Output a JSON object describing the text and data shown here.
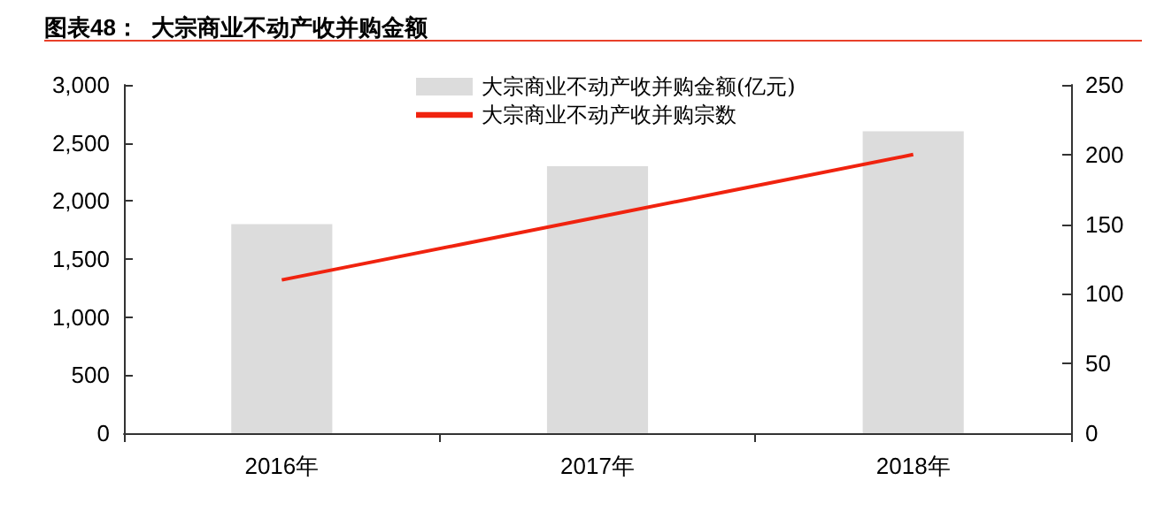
{
  "chart_data": {
    "type": "bar",
    "title": "图表48：  大宗商业不动产收并购金额",
    "categories": [
      "2016年",
      "2017年",
      "2018年"
    ],
    "series": [
      {
        "name": "大宗商业不动产收并购金额(亿元)",
        "color": "#dcdcdc",
        "values": [
          1800,
          2300,
          2600
        ]
      },
      {
        "name": "大宗商业不动产收并购宗数",
        "type": "line",
        "axis": "y2",
        "color": "#f0230f",
        "values": [
          110,
          155,
          200
        ]
      }
    ],
    "ylim": [
      0,
      3000
    ],
    "yticks": [
      0,
      500,
      {
        "value": 1000,
        "label": "1,000"
      },
      {
        "value": 1500,
        "label": "1,500"
      },
      {
        "value": 2000,
        "label": "2,000"
      },
      {
        "value": 2500,
        "label": "2,500"
      },
      {
        "value": 3000,
        "label": "3,000"
      }
    ],
    "y2lim": [
      0,
      250
    ],
    "y2ticks": [
      0,
      50,
      100,
      150,
      200,
      250
    ],
    "grid": false,
    "legend": "top",
    "marker": "none",
    "line_style": "solid"
  }
}
